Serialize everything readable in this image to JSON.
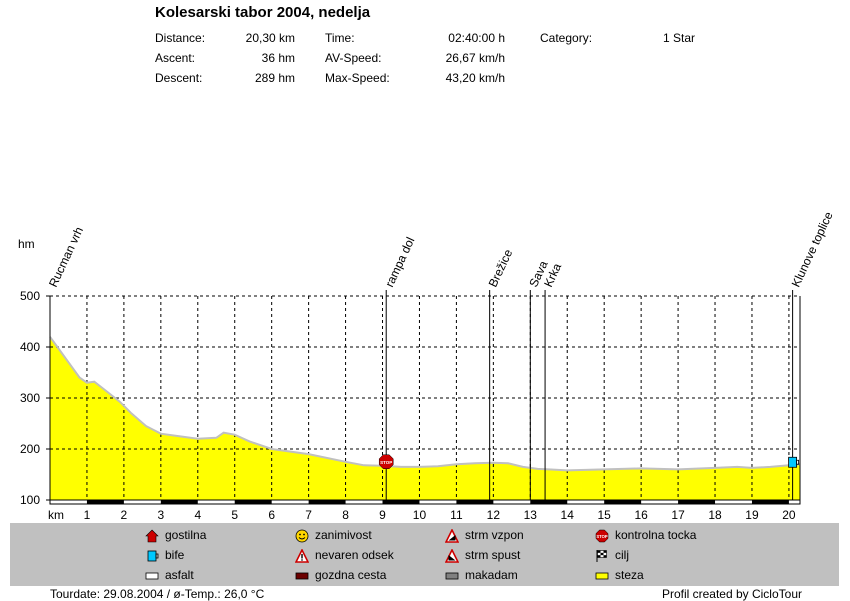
{
  "header": {
    "title": "Kolesarski tabor 2004, nedelja",
    "stats": {
      "distance_label": "Distance:",
      "distance_value": "20,30 km",
      "ascent_label": "Ascent:",
      "ascent_value": "36 hm",
      "descent_label": "Descent:",
      "descent_value": "289 hm",
      "time_label": "Time:",
      "time_value": "02:40:00 h",
      "avspeed_label": "AV-Speed:",
      "avspeed_value": "26,67 km/h",
      "maxspeed_label": "Max-Speed:",
      "maxspeed_value": "43,20 km/h",
      "category_label": "Category:",
      "category_value": "1 Star"
    }
  },
  "chart_data": {
    "type": "area",
    "ylabel": "hm",
    "xlabel": "km",
    "ylim": [
      100,
      500
    ],
    "xlim": [
      0,
      20.3
    ],
    "yticks": [
      100,
      200,
      300,
      400,
      500
    ],
    "xticks": [
      1,
      2,
      3,
      4,
      5,
      6,
      7,
      8,
      9,
      10,
      11,
      12,
      13,
      14,
      15,
      16,
      17,
      18,
      19,
      20
    ],
    "grid": true,
    "fill_color": "#ffff00",
    "line_color": "#c0c0c0",
    "series": [
      {
        "x": [
          0,
          0.2,
          0.5,
          0.8,
          1.0,
          1.2,
          1.5,
          1.9,
          2.2,
          2.6,
          3.0,
          3.5,
          4.0,
          4.5,
          4.7,
          5.0,
          5.4,
          6.0,
          7.0,
          8.0,
          8.5,
          9.0,
          9.5,
          10.0,
          10.5,
          11.0,
          11.5,
          12.0,
          12.4,
          12.8,
          13.2,
          13.5,
          14.0,
          15.0,
          16.0,
          17.0,
          18.0,
          18.6,
          19.0,
          19.5,
          20.0,
          20.3
        ],
        "y": [
          420,
          400,
          370,
          340,
          330,
          332,
          315,
          292,
          270,
          245,
          230,
          225,
          220,
          222,
          232,
          228,
          215,
          200,
          190,
          175,
          168,
          167,
          165,
          165,
          166,
          170,
          172,
          173,
          172,
          165,
          161,
          160,
          158,
          160,
          162,
          160,
          163,
          165,
          163,
          165,
          168,
          170
        ]
      }
    ],
    "waypoints": [
      {
        "name": "Rucman vrh",
        "km": 0.0
      },
      {
        "name": "rampa dol",
        "km": 9.1
      },
      {
        "name": "Brežice",
        "km": 11.9
      },
      {
        "name": "Sava",
        "km": 13.0
      },
      {
        "name": "Krka",
        "km": 13.4
      },
      {
        "name": "Klunove toplice",
        "km": 20.1
      }
    ],
    "markers": [
      {
        "type": "stop-icon",
        "km": 9.1,
        "elevation": 175
      },
      {
        "type": "bife-icon",
        "km": 20.1,
        "elevation": 172
      }
    ]
  },
  "legend": {
    "items": [
      {
        "label": "gostilna",
        "icon": "house-icon",
        "color": "#cc0000"
      },
      {
        "label": "bife",
        "icon": "cup-icon",
        "color": "#00c8ff"
      },
      {
        "label": "asfalt",
        "icon": "surface-asfalt-icon",
        "color": "#ffffff"
      },
      {
        "label": "zanimivost",
        "icon": "smiley-icon",
        "color": "#ffd700"
      },
      {
        "label": "nevaren odsek",
        "icon": "warning-icon",
        "color": "#cc0000"
      },
      {
        "label": "gozdna cesta",
        "icon": "surface-gozdna-icon",
        "color": "#6b0000"
      },
      {
        "label": "strm vzpon",
        "icon": "steep-up-icon",
        "color": "#cc0000"
      },
      {
        "label": "strm spust",
        "icon": "steep-down-icon",
        "color": "#cc0000"
      },
      {
        "label": "makadam",
        "icon": "surface-makadam-icon",
        "color": "#808080"
      },
      {
        "label": "kontrolna tocka",
        "icon": "stop-icon",
        "color": "#cc0000"
      },
      {
        "label": "cilj",
        "icon": "finish-flag-icon",
        "color": "#000000"
      },
      {
        "label": "steza",
        "icon": "surface-steza-icon",
        "color": "#ffff00"
      }
    ]
  },
  "footer": {
    "left": "Tourdate: 29.08.2004  /  ø-Temp.: 26,0 °C",
    "right": "Profil created by CicloTour"
  }
}
